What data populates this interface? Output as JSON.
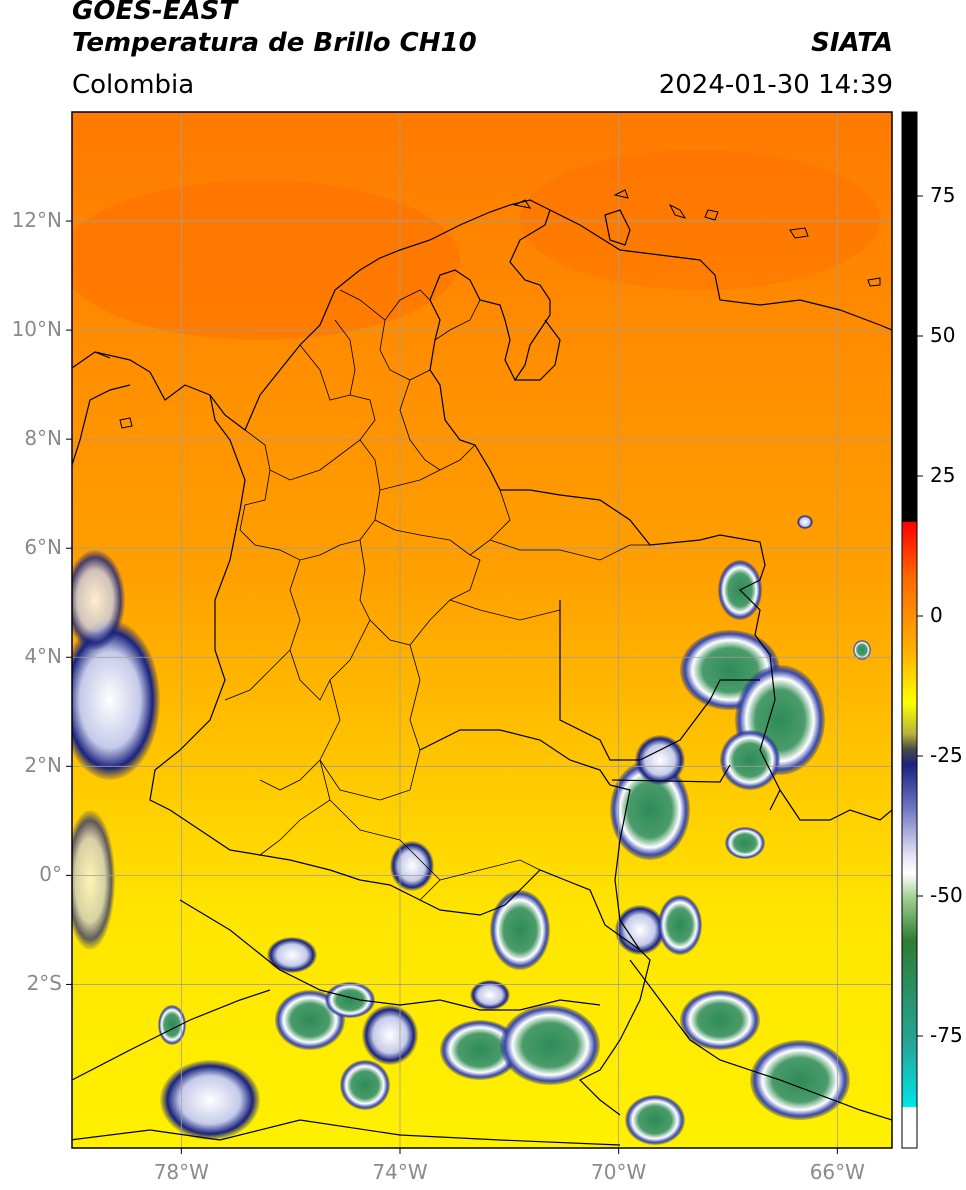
{
  "header": {
    "satellite": "GOES-EAST",
    "product": "Temperatura de Brillo CH10",
    "organization": "SIATA",
    "region": "Colombia",
    "timestamp": "2024-01-30 14:39"
  },
  "map": {
    "projection": "PlateCarree",
    "lon_range": [
      -80,
      -65
    ],
    "lat_range": [
      -5,
      14
    ],
    "lat_ticks": [
      {
        "value": 12,
        "label": "12°N"
      },
      {
        "value": 10,
        "label": "10°N"
      },
      {
        "value": 8,
        "label": "8°N"
      },
      {
        "value": 6,
        "label": "6°N"
      },
      {
        "value": 4,
        "label": "4°N"
      },
      {
        "value": 2,
        "label": "2°N"
      },
      {
        "value": 0,
        "label": "0°"
      },
      {
        "value": -2,
        "label": "2°S"
      }
    ],
    "lon_ticks": [
      {
        "value": -78,
        "label": "78°W"
      },
      {
        "value": -74,
        "label": "74°W"
      },
      {
        "value": -70,
        "label": "70°W"
      },
      {
        "value": -66,
        "label": "66°W"
      }
    ],
    "grid": true,
    "colors": {
      "warm_north": "#ff7f00",
      "mid": "#ffa500",
      "cool_south": "#ffee00",
      "cloud_green": "#2e8b57",
      "cloud_white": "#ffffff",
      "cloud_navy": "#1a237e",
      "border": "#000000",
      "gridline": "#9e9e9e"
    }
  },
  "colorbar": {
    "range": [
      -95,
      90
    ],
    "ticks": [
      {
        "value": 75,
        "label": "75"
      },
      {
        "value": 50,
        "label": "50"
      },
      {
        "value": 25,
        "label": "25"
      },
      {
        "value": 0,
        "label": "0"
      },
      {
        "value": -25,
        "label": "-25"
      },
      {
        "value": -50,
        "label": "-50"
      },
      {
        "value": -75,
        "label": "-75"
      }
    ]
  }
}
